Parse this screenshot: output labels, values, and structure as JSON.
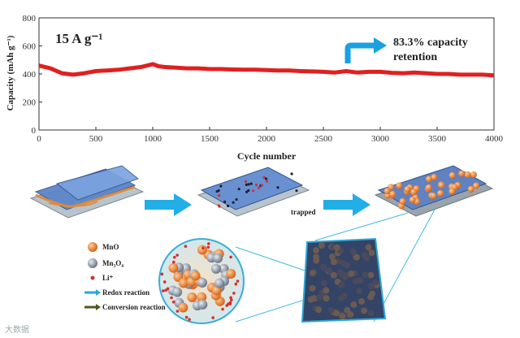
{
  "chart_data": {
    "type": "line",
    "title": "15 A g⁻¹",
    "xlabel": "Cycle number",
    "ylabel": "Capacity (mAh g⁻¹)",
    "xlim": [
      0,
      4000
    ],
    "ylim": [
      0,
      800
    ],
    "xticks": [
      0,
      500,
      1000,
      1500,
      2000,
      2500,
      3000,
      3500,
      4000
    ],
    "yticks": [
      0,
      200,
      400,
      600,
      800
    ],
    "annotation": "83.3% capacity retention",
    "color": "#e02020",
    "grid": false,
    "series": [
      {
        "x": [
          0,
          100,
          200,
          300,
          400,
          500,
          600,
          700,
          800,
          900,
          1000,
          1050,
          1100,
          1200,
          1300,
          1400,
          1500,
          1600,
          1700,
          1800,
          1900,
          2000,
          2100,
          2200,
          2300,
          2400,
          2500,
          2600,
          2700,
          2800,
          2900,
          3000,
          3100,
          3200,
          3300,
          3400,
          3500,
          3600,
          3700,
          3800,
          3900,
          4000
        ],
        "values": [
          460,
          440,
          405,
          395,
          405,
          420,
          425,
          430,
          440,
          450,
          470,
          455,
          450,
          445,
          440,
          440,
          435,
          435,
          432,
          430,
          430,
          428,
          425,
          425,
          420,
          418,
          415,
          410,
          420,
          410,
          415,
          415,
          408,
          405,
          410,
          405,
          400,
          400,
          395,
          395,
          395,
          390
        ]
      }
    ]
  },
  "legend": {
    "items": [
      {
        "icon": "orange-sphere-icon",
        "label": "MnO",
        "color": "#e8812a"
      },
      {
        "icon": "grey-sphere-icon",
        "label": "Mn₃O₄",
        "color": "#8a96a8"
      },
      {
        "icon": "red-dot-icon",
        "label": "Li⁺",
        "color": "#d23030"
      },
      {
        "icon": "blue-arrow-icon",
        "label": "Redox reaction",
        "color": "#2aa8d8"
      },
      {
        "icon": "olive-arrow-icon",
        "label": "Conversion reaction",
        "color": "#4a5a20"
      }
    ]
  },
  "scheme": {
    "trapped_label": "trapped"
  },
  "watermark": "大数据"
}
